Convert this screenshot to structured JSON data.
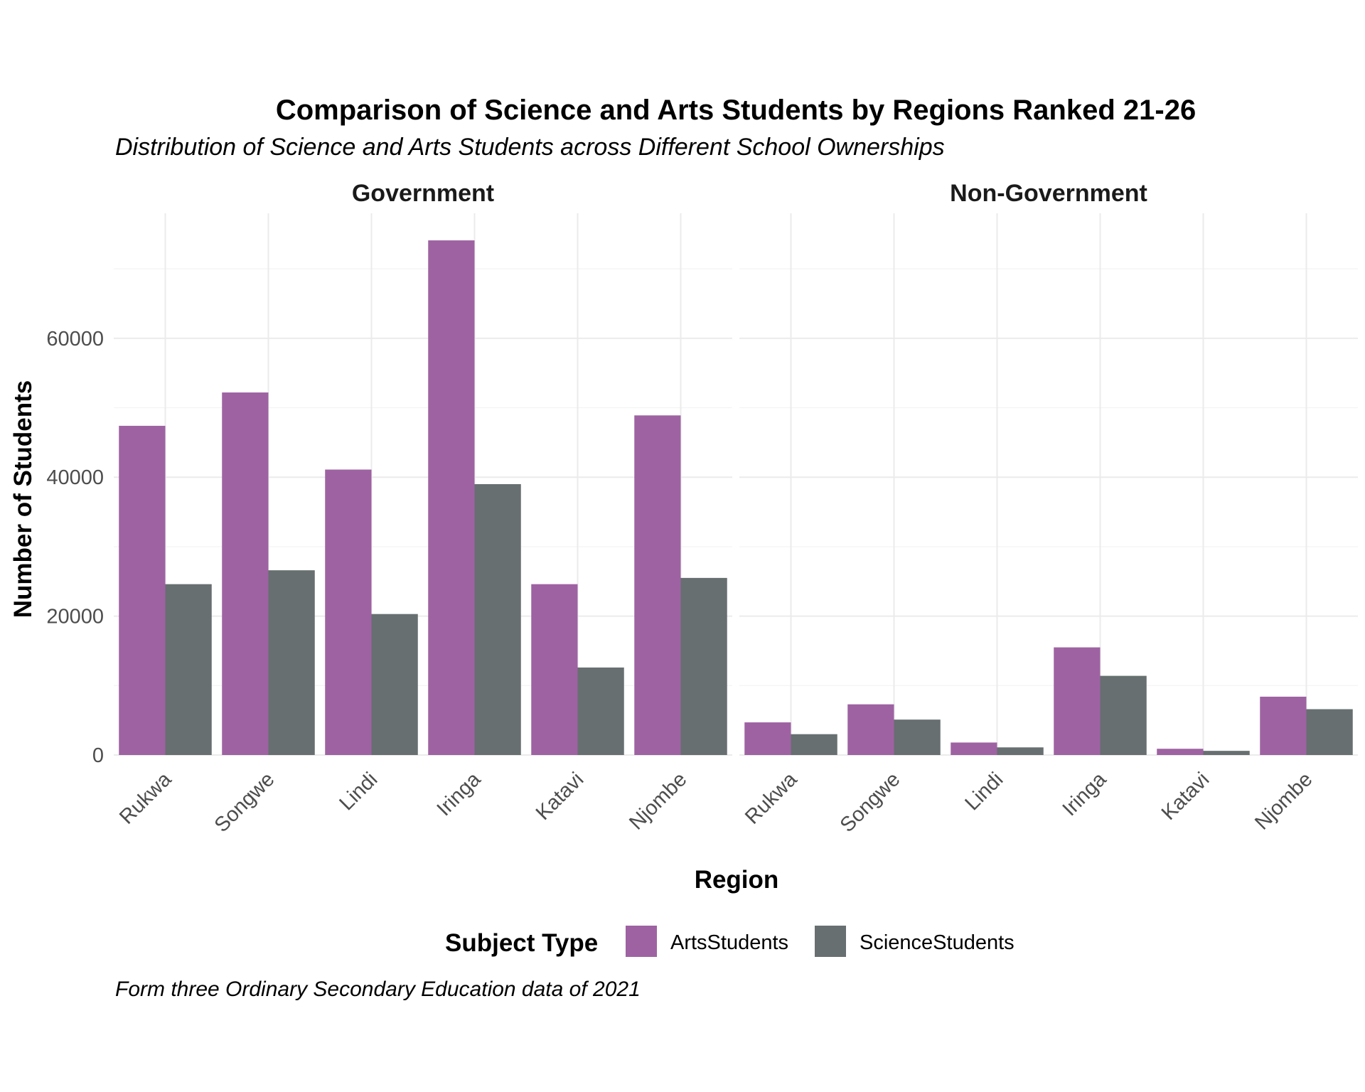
{
  "chart_data": {
    "type": "bar",
    "title": "Comparison of Science and Arts Students by Regions Ranked 21-26",
    "subtitle": "Distribution of Science and Arts Students across Different School Ownerships",
    "caption": "Form three Ordinary Secondary Education data of 2021",
    "xlabel": "Region",
    "ylabel": "Number of Students",
    "ylim": [
      0,
      78000
    ],
    "yticks": [
      0,
      20000,
      40000,
      60000
    ],
    "grid": true,
    "legend": {
      "title": "Subject Type",
      "position": "bottom",
      "items": [
        {
          "name": "ArtsStudents",
          "color": "#9e62a2"
        },
        {
          "name": "ScienceStudents",
          "color": "#676f70"
        }
      ]
    },
    "categories": [
      "Rukwa",
      "Songwe",
      "Lindi",
      "Iringa",
      "Katavi",
      "Njombe"
    ],
    "facets": [
      {
        "label": "Government",
        "series": [
          {
            "name": "ArtsStudents",
            "values": [
              47400,
              52200,
              41100,
              74100,
              24600,
              48900
            ]
          },
          {
            "name": "ScienceStudents",
            "values": [
              24600,
              26600,
              20300,
              39000,
              12600,
              25500
            ]
          }
        ]
      },
      {
        "label": "Non-Government",
        "series": [
          {
            "name": "ArtsStudents",
            "values": [
              4700,
              7300,
              1800,
              15500,
              900,
              8400
            ]
          },
          {
            "name": "ScienceStudents",
            "values": [
              3000,
              5100,
              1100,
              11400,
              600,
              6600
            ]
          }
        ]
      }
    ]
  }
}
